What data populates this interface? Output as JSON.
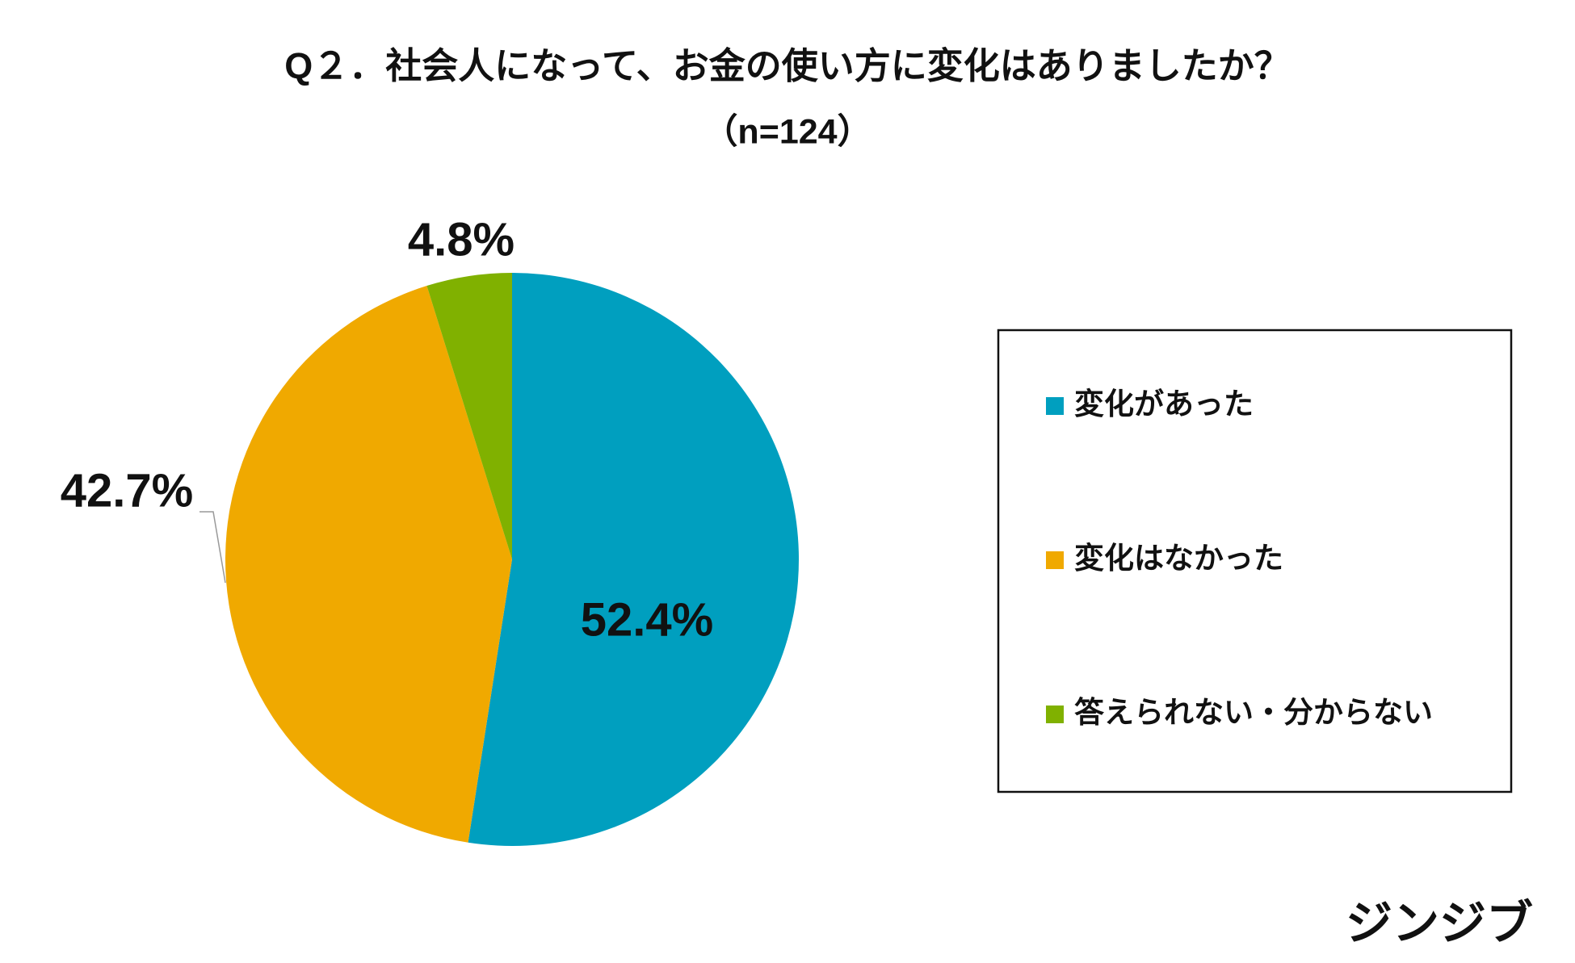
{
  "chart_data": {
    "type": "pie",
    "title": "Q２．社会人になって、お金の使い方に変化はありましたか？",
    "subtitle": "（n=124）",
    "categories": [
      "変化があった",
      "変化はなかった",
      "答えられない・分からない"
    ],
    "values": [
      52.4,
      42.7,
      4.8
    ],
    "value_labels": [
      "52.4%",
      "42.7%",
      "4.8%"
    ],
    "colors": [
      "#009fbf",
      "#f0a900",
      "#80b100"
    ],
    "legend": "right"
  },
  "brand": "ジンジブ"
}
